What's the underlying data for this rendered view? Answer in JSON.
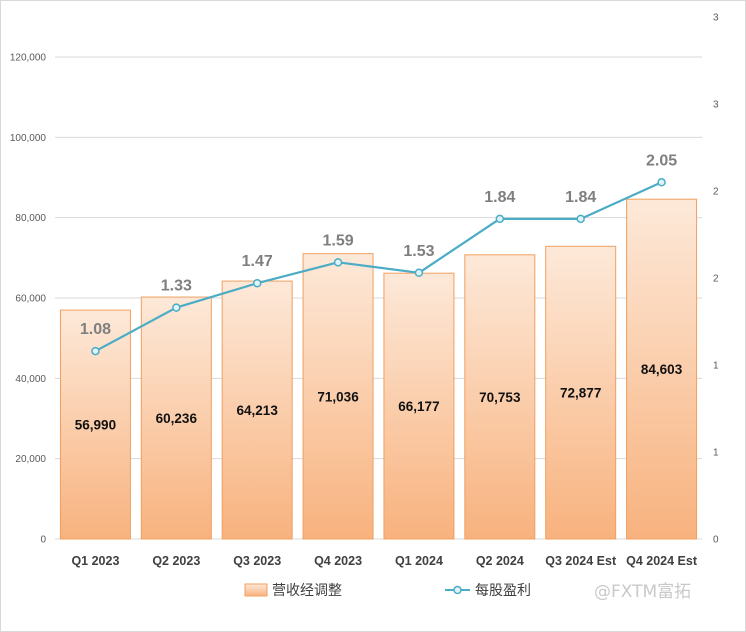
{
  "chart_data": {
    "type": "bar",
    "categories": [
      "Q1 2023",
      "Q2 2023",
      "Q3 2023",
      "Q4 2023",
      "Q1 2024",
      "Q2 2024",
      "Q3 2024 Est",
      "Q4 2024 Est"
    ],
    "series": [
      {
        "name": "营收经调整",
        "type": "bar",
        "axis": "left",
        "values": [
          56990,
          60236,
          64213,
          71036,
          66177,
          70753,
          72877,
          84603
        ],
        "labels": [
          "56,990",
          "60,236",
          "64,213",
          "71,036",
          "66,177",
          "70,753",
          "72,877",
          "84,603"
        ]
      },
      {
        "name": "每股盈利",
        "type": "line",
        "axis": "right",
        "values": [
          1.08,
          1.33,
          1.47,
          1.59,
          1.53,
          1.84,
          1.84,
          2.05
        ],
        "labels": [
          "1.08",
          "1.33",
          "1.47",
          "1.59",
          "1.53",
          "1.84",
          "1.84",
          "2.05"
        ]
      }
    ],
    "left_axis": {
      "ylim": [
        0,
        120000
      ],
      "ticks": [
        0,
        20000,
        40000,
        60000,
        80000,
        100000,
        120000
      ],
      "tick_labels": [
        "0",
        "20,000",
        "40,000",
        "60,000",
        "80,000",
        "100,000",
        "120,000"
      ]
    },
    "right_axis": {
      "ylim": [
        0,
        3
      ],
      "ticks": [
        0,
        0.5,
        1,
        1.5,
        2,
        2.5,
        3
      ],
      "tick_labels": [
        "0",
        "1",
        "1",
        "2",
        "2",
        "3",
        "3"
      ]
    },
    "grid": true,
    "legend_position": "bottom",
    "colors": {
      "bar_top": "#fde9d9",
      "bar_bottom": "#f8b27e",
      "bar_border": "#f0a060",
      "line": "#4bacc6",
      "marker_fill": "#dff3f8"
    }
  },
  "watermark": "@FXTM富拓"
}
